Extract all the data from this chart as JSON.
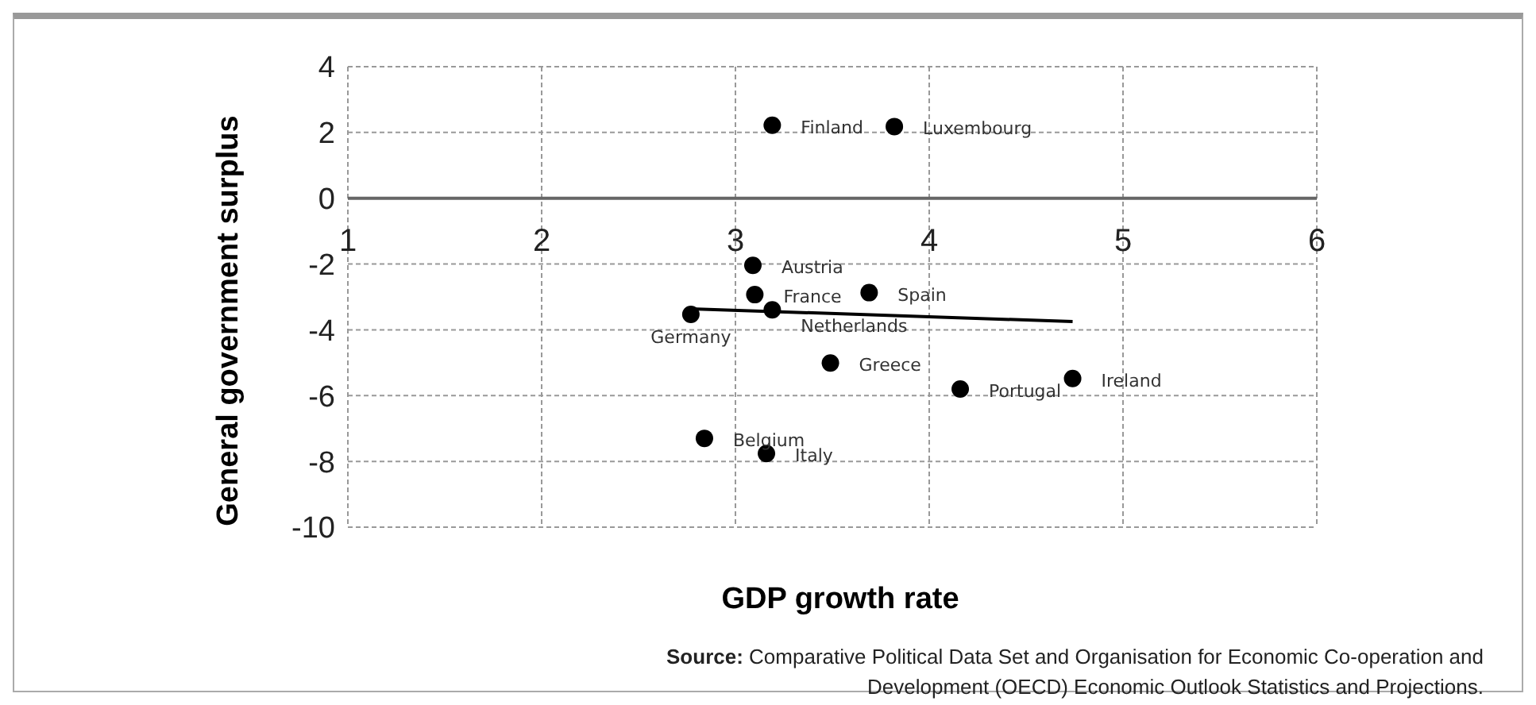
{
  "chart_data": {
    "type": "scatter",
    "xlabel": "GDP growth rate",
    "ylabel": "General government surplus",
    "xlim": [
      1,
      6
    ],
    "xticks": [
      1,
      2,
      3,
      4,
      5,
      6
    ],
    "ylim": [
      -10,
      4
    ],
    "yticks": [
      -10,
      -8,
      -6,
      -4,
      -2,
      0,
      2,
      4
    ],
    "grid": true,
    "marker": "circle",
    "series": [
      {
        "color": "#000000",
        "x": [
          3.19,
          3.82,
          3.09,
          3.1,
          3.69,
          3.19,
          2.77,
          3.49,
          4.16,
          4.74,
          2.84,
          3.16
        ],
        "values": [
          2.22,
          2.18,
          -2.04,
          -2.93,
          -2.87,
          -3.39,
          -3.53,
          -5.01,
          -5.8,
          -5.48,
          -7.3,
          -7.76
        ]
      },
      {
        "type": "line",
        "marker": "none",
        "color": "#000000",
        "x": [
          2.77,
          4.74
        ],
        "values": [
          -3.36,
          -3.75
        ]
      }
    ],
    "annotations": [
      {
        "text": "Finland",
        "x": 3.19,
        "y": 2.22
      },
      {
        "text": "Luxembourg",
        "x": 3.82,
        "y": 2.18
      },
      {
        "text": "Austria",
        "x": 3.09,
        "y": -2.04
      },
      {
        "text": "France",
        "x": 3.1,
        "y": -2.93
      },
      {
        "text": "Spain",
        "x": 3.69,
        "y": -2.87
      },
      {
        "text": "Netherlands",
        "x": 3.19,
        "y": -3.39
      },
      {
        "text": "Germany",
        "x": 2.77,
        "y": -3.53
      },
      {
        "text": "Greece",
        "x": 3.49,
        "y": -5.01
      },
      {
        "text": "Portugal",
        "x": 4.16,
        "y": -5.8
      },
      {
        "text": "Ireland",
        "x": 4.74,
        "y": -5.48
      },
      {
        "text": "Belgium",
        "x": 2.84,
        "y": -7.3
      },
      {
        "text": "Italy",
        "x": 3.16,
        "y": -7.76
      },
      "Source: Comparative Political Data Set and Organisation for Economic Co-operation and Development (OECD) Economic Outlook Statistics and Projections."
    ]
  }
}
